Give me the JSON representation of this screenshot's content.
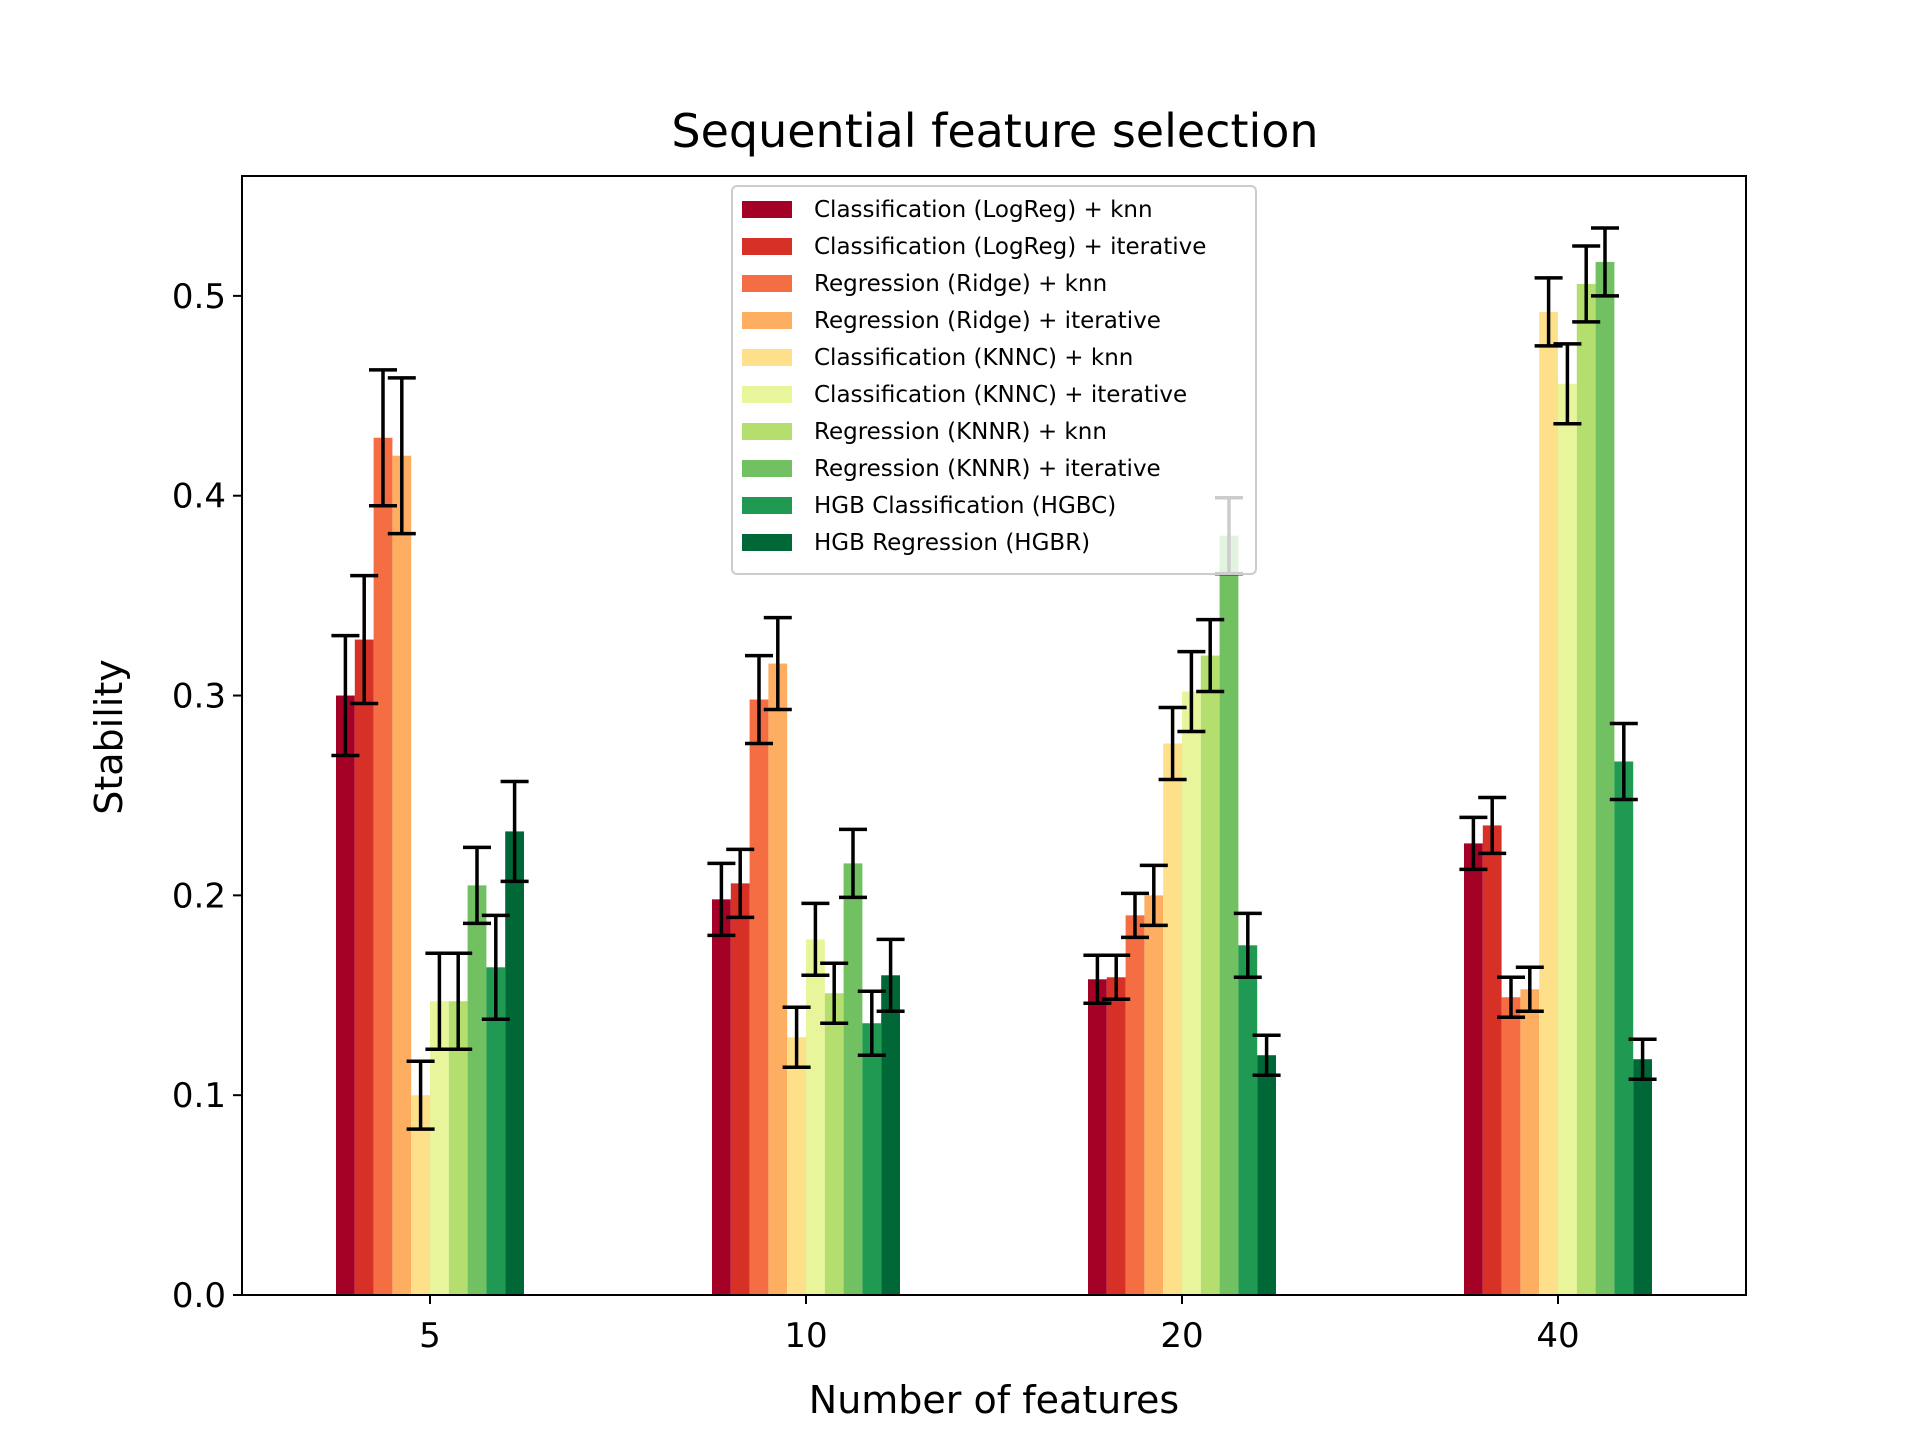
{
  "chart_data": {
    "type": "bar",
    "title": "Sequential feature selection",
    "xlabel": "Number of features",
    "ylabel": "Stability",
    "categories": [
      "5",
      "10",
      "20",
      "40"
    ],
    "ylim": [
      0,
      0.56
    ],
    "yticks": [
      "0.0",
      "0.1",
      "0.2",
      "0.3",
      "0.4",
      "0.5"
    ],
    "legend_position": "top-center",
    "grid": false,
    "error_bars": true,
    "series": [
      {
        "name": "Classification (LogReg) + knn",
        "color": "#a50026",
        "values": [
          0.3,
          0.198,
          0.158,
          0.226
        ],
        "errors": [
          0.03,
          0.018,
          0.012,
          0.013
        ]
      },
      {
        "name": "Classification (LogReg) + iterative",
        "color": "#d73027",
        "values": [
          0.328,
          0.206,
          0.159,
          0.235
        ],
        "errors": [
          0.032,
          0.017,
          0.011,
          0.014
        ]
      },
      {
        "name": "Regression (Ridge) + knn",
        "color": "#f46d43",
        "values": [
          0.429,
          0.298,
          0.19,
          0.149
        ],
        "errors": [
          0.034,
          0.022,
          0.011,
          0.01
        ]
      },
      {
        "name": "Regression (Ridge) + iterative",
        "color": "#fdae61",
        "values": [
          0.42,
          0.316,
          0.2,
          0.153
        ],
        "errors": [
          0.039,
          0.023,
          0.015,
          0.011
        ]
      },
      {
        "name": "Classification (KNNC) + knn",
        "color": "#fee08b",
        "values": [
          0.1,
          0.129,
          0.276,
          0.492
        ],
        "errors": [
          0.017,
          0.015,
          0.018,
          0.017
        ]
      },
      {
        "name": "Classification (KNNC) + iterative",
        "color": "#e8f59a",
        "values": [
          0.147,
          0.178,
          0.302,
          0.456
        ],
        "errors": [
          0.024,
          0.018,
          0.02,
          0.02
        ]
      },
      {
        "name": "Regression (KNNR) + knn",
        "color": "#b4de6e",
        "values": [
          0.147,
          0.151,
          0.32,
          0.506
        ],
        "errors": [
          0.024,
          0.015,
          0.018,
          0.019
        ]
      },
      {
        "name": "Regression (KNNR) + iterative",
        "color": "#71c163",
        "values": [
          0.205,
          0.216,
          0.38,
          0.517
        ],
        "errors": [
          0.019,
          0.017,
          0.019,
          0.017
        ]
      },
      {
        "name": "HGB Classification (HGBC)",
        "color": "#209a53",
        "values": [
          0.164,
          0.136,
          0.175,
          0.267
        ],
        "errors": [
          0.026,
          0.016,
          0.016,
          0.019
        ]
      },
      {
        "name": "HGB Regression (HGBR)",
        "color": "#006837",
        "values": [
          0.232,
          0.16,
          0.12,
          0.118
        ],
        "errors": [
          0.025,
          0.018,
          0.01,
          0.01
        ]
      }
    ]
  }
}
